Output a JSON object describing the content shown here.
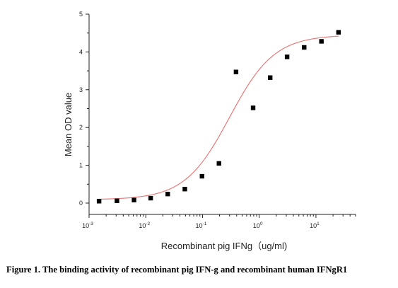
{
  "chart_data": {
    "type": "scatter",
    "xlabel": "Recombinant pig  IFNg（ug/ml)",
    "ylabel": "Mean OD value",
    "xscale": "log",
    "xlim": [
      0.001,
      50
    ],
    "ylim": [
      -0.3,
      5
    ],
    "x_ticks": [
      {
        "value": 0.001,
        "base": "10",
        "exp": "-3"
      },
      {
        "value": 0.01,
        "base": "10",
        "exp": "-2"
      },
      {
        "value": 0.1,
        "base": "10",
        "exp": "-1"
      },
      {
        "value": 1,
        "base": "10",
        "exp": "0"
      },
      {
        "value": 10,
        "base": "10",
        "exp": "1"
      }
    ],
    "y_ticks": [
      0,
      1,
      2,
      3,
      4,
      5
    ],
    "grid": false,
    "series": [
      {
        "kind": "points",
        "marker": "square",
        "color": "#000000",
        "x": [
          0.0015,
          0.0031,
          0.0062,
          0.0122,
          0.0244,
          0.0488,
          0.098,
          0.195,
          0.39,
          0.78,
          1.56,
          3.1,
          6.2,
          12.5,
          25
        ],
        "y": [
          0.05,
          0.06,
          0.08,
          0.13,
          0.24,
          0.37,
          0.71,
          1.05,
          3.47,
          2.52,
          3.32,
          3.87,
          4.12,
          4.28,
          4.52
        ]
      },
      {
        "kind": "fit-curve",
        "color": "#e87a7a",
        "bottom": 0.09,
        "top": 4.45,
        "ec50": 0.3,
        "hill": 1.1,
        "x_range": [
          0.0015,
          25
        ]
      }
    ]
  },
  "caption": "Figure 1. The binding activity of recombinant pig IFN-g and recombinant human IFNgR1"
}
